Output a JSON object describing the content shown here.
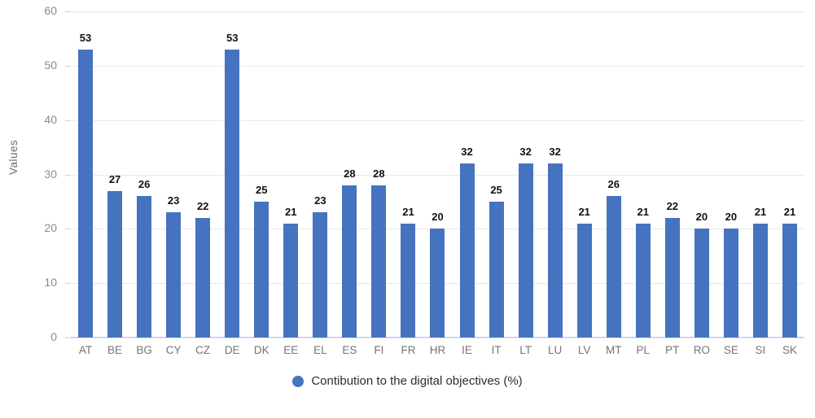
{
  "chart_data": {
    "type": "bar",
    "title": "",
    "xlabel": "",
    "ylabel": "Values",
    "categories": [
      "AT",
      "BE",
      "BG",
      "CY",
      "CZ",
      "DE",
      "DK",
      "EE",
      "EL",
      "ES",
      "FI",
      "FR",
      "HR",
      "IE",
      "IT",
      "LT",
      "LU",
      "LV",
      "MT",
      "PL",
      "PT",
      "RO",
      "SE",
      "SI",
      "SK"
    ],
    "values": [
      53,
      27,
      26,
      23,
      22,
      53,
      25,
      21,
      23,
      28,
      28,
      21,
      20,
      32,
      25,
      32,
      32,
      21,
      26,
      21,
      22,
      20,
      20,
      21,
      21
    ],
    "ylim": [
      0,
      60
    ],
    "yticks": [
      0,
      10,
      20,
      30,
      40,
      50,
      60
    ],
    "grid": "horizontal",
    "legend_position": "bottom-center",
    "legend": [
      {
        "label": "Contibution to the digital objectives (%)",
        "color": "#4673BF"
      }
    ],
    "bar_color": "#4673BF",
    "axis_line_color": "#ccd6ea",
    "gridline_color": "#e9e9e9"
  }
}
